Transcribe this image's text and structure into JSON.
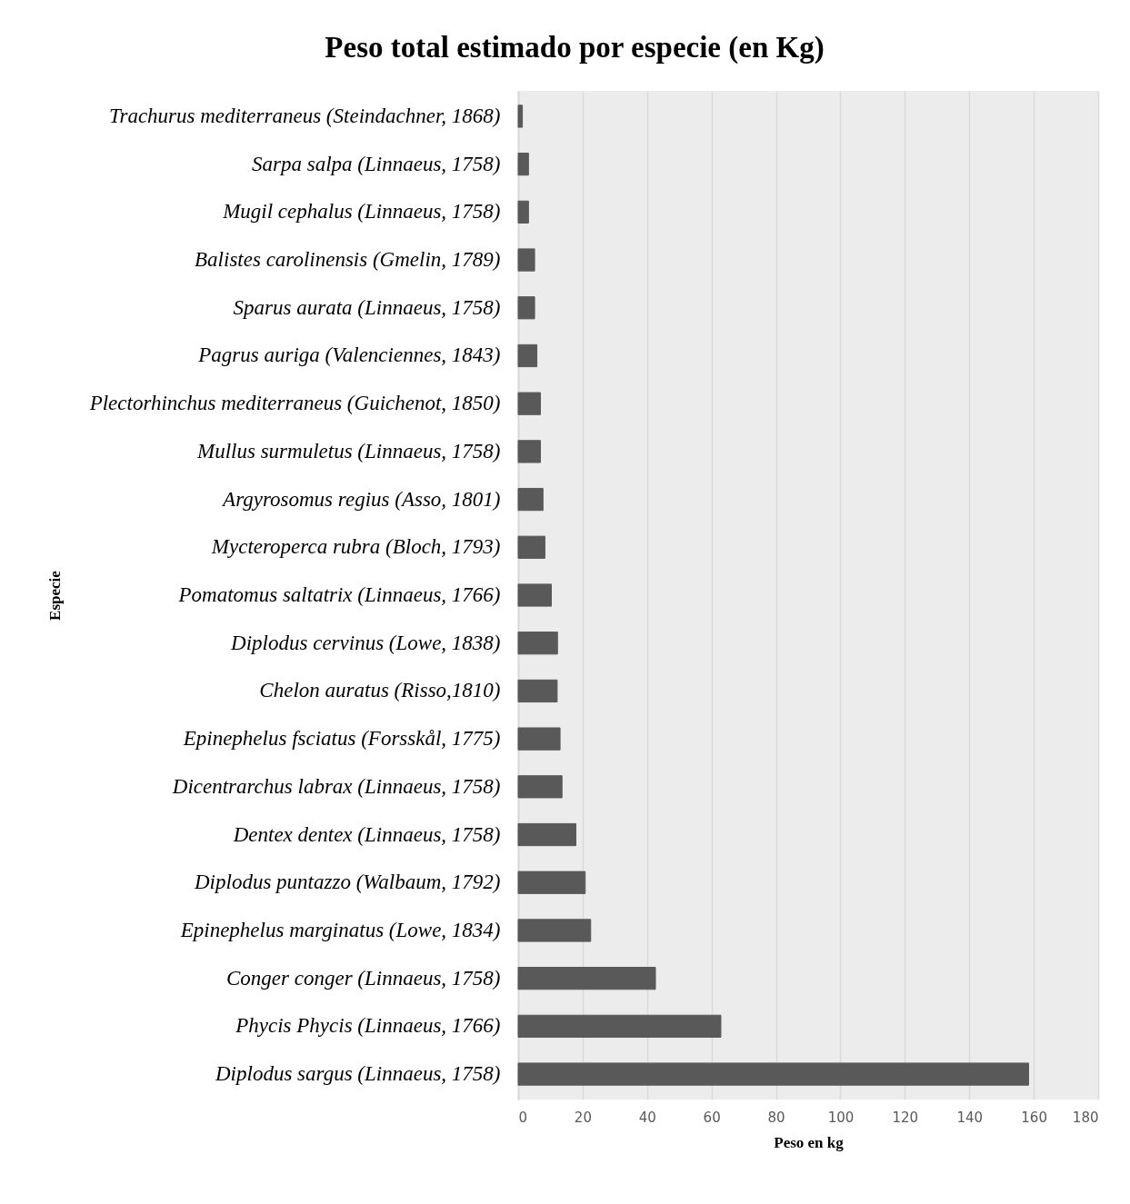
{
  "chart_data": {
    "type": "bar",
    "orientation": "horizontal",
    "title": "Peso total  estimado por especie (en Kg)",
    "xlabel": "Peso en kg",
    "ylabel": "Especie",
    "categories": [
      "Trachurus mediterraneus (Steindachner, 1868)",
      "Sarpa salpa (Linnaeus, 1758)",
      "Mugil cephalus (Linnaeus, 1758)",
      "Balistes carolinensis (Gmelin, 1789)",
      "Sparus aurata (Linnaeus, 1758)",
      "Pagrus auriga (Valenciennes, 1843)",
      "Plectorhinchus mediterraneus (Guichenot, 1850)",
      "Mullus surmuletus (Linnaeus, 1758)",
      "Argyrosomus regius (Asso, 1801)",
      "Mycteroperca rubra (Bloch, 1793)",
      "Pomatomus saltatrix (Linnaeus, 1766)",
      "Diplodus cervinus (Lowe, 1838)",
      "Chelon auratus (Risso,1810)",
      "Epinephelus fsciatus (Forsskål, 1775)",
      "Dicentrarchus labrax (Linnaeus, 1758)",
      "Dentex dentex (Linnaeus, 1758)",
      "Diplodus puntazzo (Walbaum, 1792)",
      "Epinephelus marginatus (Lowe, 1834)",
      "Conger conger (Linnaeus, 1758)",
      "Phycis Phycis (Linnaeus, 1766)",
      "Diplodus sargus (Linnaeus, 1758)"
    ],
    "values": [
      1.3,
      3.2,
      3.2,
      5.1,
      5.1,
      5.8,
      6.9,
      6.9,
      7.7,
      8.3,
      10.3,
      12.2,
      12.1,
      13.0,
      13.6,
      17.9,
      20.8,
      22.5,
      42.6,
      62.9,
      158.4
    ],
    "color": "#595959",
    "xlim": [
      0,
      180
    ],
    "xticks": [
      0,
      20,
      40,
      60,
      80,
      100,
      120,
      140,
      160,
      180
    ],
    "grid": "x"
  }
}
